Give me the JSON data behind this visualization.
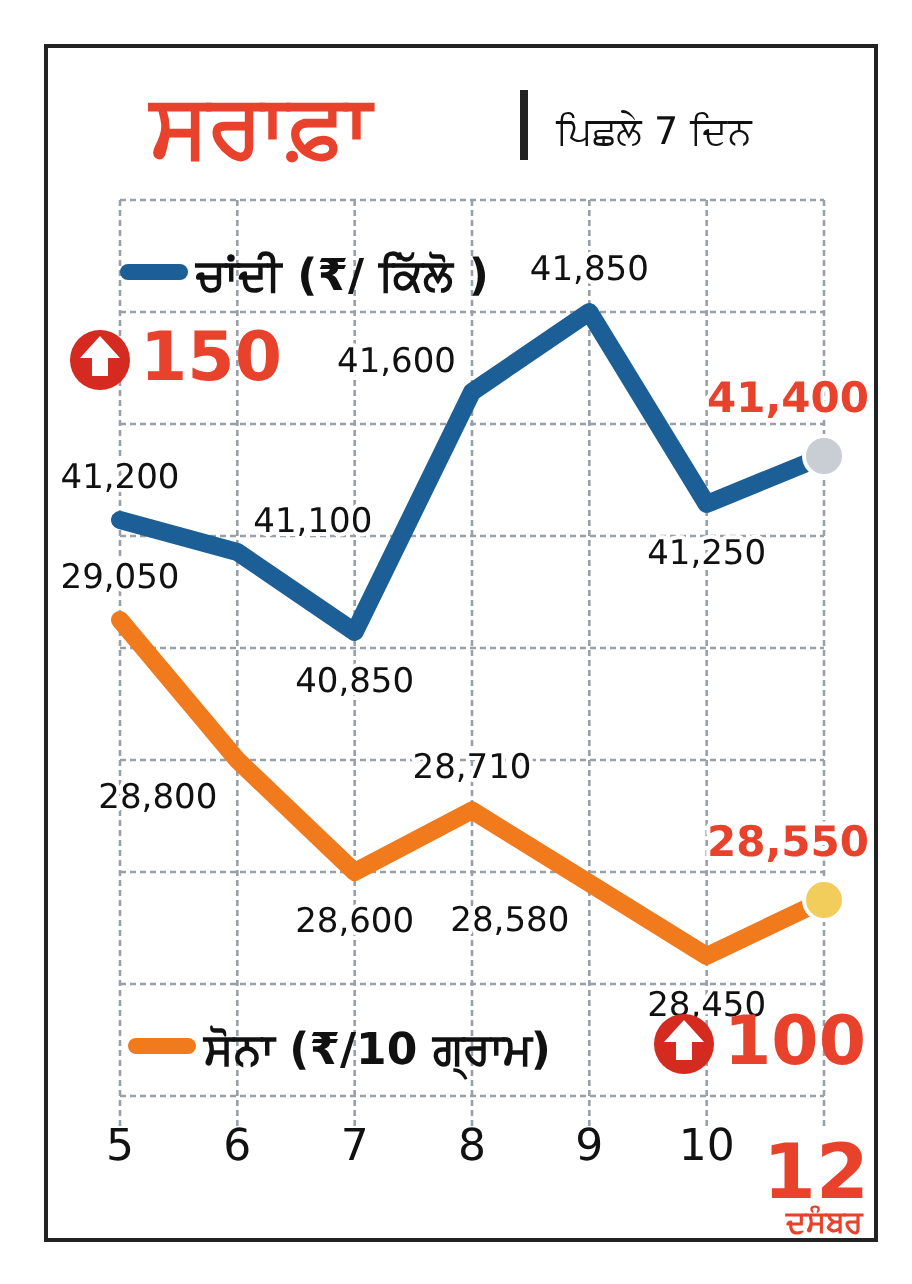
{
  "chart_data": {
    "type": "line",
    "title": "ਸਰਾਫ਼ਾ",
    "subtitle": "ਪਿਛਲੇ 7 ਦਿਨ",
    "xlabel": "ਦਸੰਬਰ",
    "categories": [
      "5",
      "6",
      "7",
      "8",
      "9",
      "10",
      "12"
    ],
    "series": [
      {
        "name": "ਚਾਂਦੀ (₹/ ਕਿੱਲੋ )",
        "color": "#1c5f97",
        "values": [
          41200,
          41100,
          40850,
          41600,
          41850,
          41250,
          41400
        ],
        "value_labels": [
          "41,200",
          "41,100",
          "40,850",
          "41,600",
          "41,850",
          "41,250",
          "41,400"
        ]
      },
      {
        "name": "ਸੋਨਾ (₹/10 ਗ੍ਰਾਮ)",
        "color": "#f07a1c",
        "axis": "y2",
        "values": [
          29050,
          28800,
          28600,
          28710,
          28580,
          28450,
          28550
        ],
        "value_labels": [
          "29,050",
          "28,800",
          "28,600",
          "28,710",
          "28,580",
          "28,450",
          "28,550"
        ]
      }
    ],
    "annotations": [
      "150",
      "100"
    ],
    "ylim": [
      39400,
      42200
    ],
    "yticks": [
      {
        "value": 39400,
        "label": null
      },
      {
        "value": 39750,
        "label": null
      },
      {
        "value": 40100,
        "label": null
      },
      {
        "value": 40450,
        "label": null
      },
      {
        "value": 40800,
        "label": null
      },
      {
        "value": 41150,
        "label": null
      },
      {
        "value": 41500,
        "label": null
      },
      {
        "value": 41850,
        "label": null
      },
      {
        "value": 42200,
        "label": null
      }
    ],
    "y2lim": [
      28200,
      29800
    ],
    "tick_labels": "x",
    "grid": true,
    "legend": "left",
    "marker": "none",
    "line_style": "solid"
  }
}
